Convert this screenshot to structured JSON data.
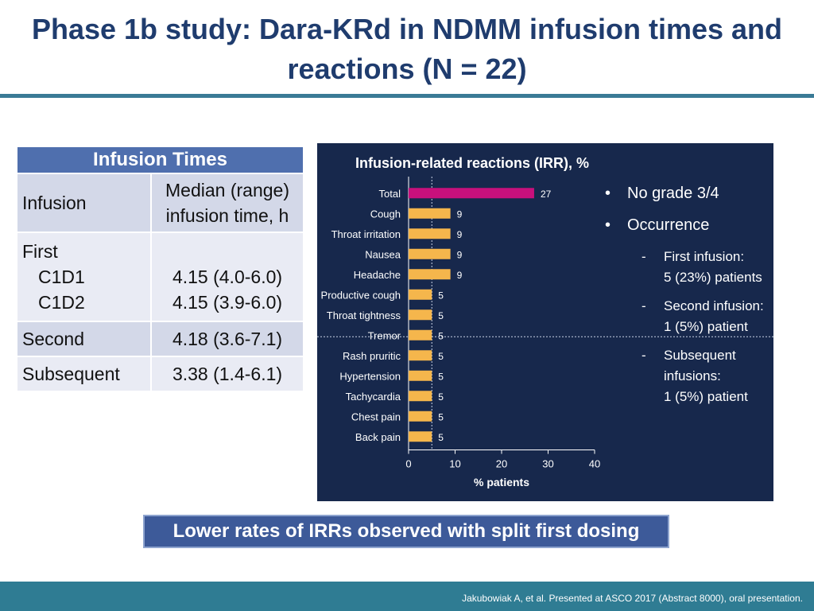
{
  "title": {
    "line1": "Phase 1b study: Dara-KRd in NDMM infusion times and",
    "line2": "reactions (N = 22)"
  },
  "table": {
    "header": "Infusion Times",
    "col1": "Infusion",
    "col2_line1": "Median (range)",
    "col2_line2": "infusion time, h",
    "rows": {
      "first": "First",
      "c1d1": "C1D1",
      "c1d1_val": "4.15 (4.0-6.0)",
      "c1d2": "C1D2",
      "c1d2_val": "4.15 (3.9-6.0)",
      "second": "Second",
      "second_val": "4.18 (3.6-7.1)",
      "subsequent": "Subsequent",
      "subsequent_val": "3.38 (1.4-6.1)"
    }
  },
  "chart_data": {
    "type": "bar",
    "orientation": "horizontal",
    "title": "Infusion-related reactions (IRR), %",
    "xlabel": "% patients",
    "ylabel": "",
    "xlim": [
      0,
      40
    ],
    "xticks": [
      "0",
      "10",
      "20",
      "30",
      "40"
    ],
    "categories": [
      "Total",
      "Cough",
      "Throat irritation",
      "Nausea",
      "Headache",
      "Productive cough",
      "Throat tightness",
      "Tremor",
      "Rash pruritic",
      "Hypertension",
      "Tachycardia",
      "Chest pain",
      "Back pain"
    ],
    "values": [
      27,
      9,
      9,
      9,
      9,
      5,
      5,
      5,
      5,
      5,
      5,
      5,
      5
    ],
    "colors": {
      "total": "#c8107c",
      "other": "#f5b64c",
      "background": "#17284c",
      "text": "#ffffff"
    }
  },
  "bullets": {
    "b1": "No grade 3/4",
    "b2": "Occurrence",
    "s1_l1": "First infusion:",
    "s1_l2": "5 (23%) patients",
    "s2_l1": "Second  infusion:",
    "s2_l2": "1 (5%) patient",
    "s3_l1": "Subsequent",
    "s3_l2": "infusions:",
    "s3_l3": "1 (5%) patient"
  },
  "callout": "Lower rates of IRRs observed with split first dosing",
  "footer": "Jakubowiak A, et al. Presented at ASCO 2017 (Abstract 8000), oral presentation."
}
